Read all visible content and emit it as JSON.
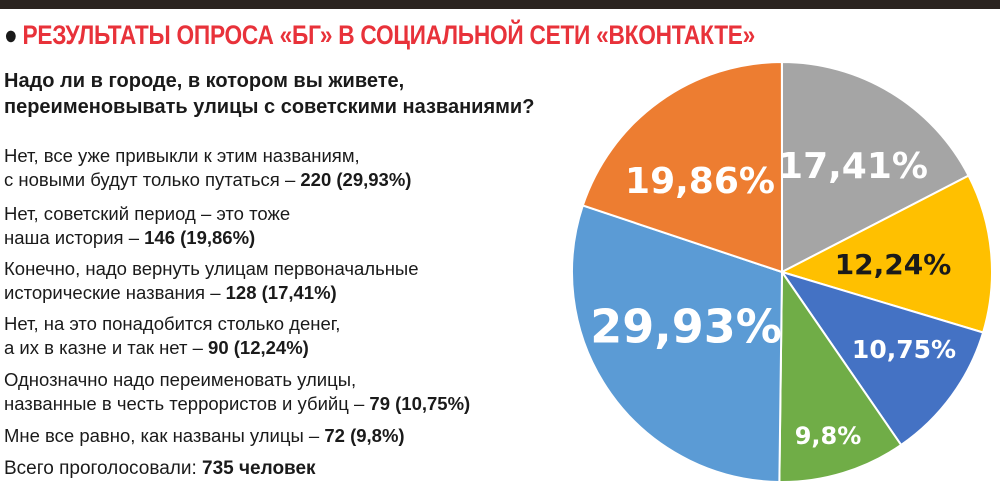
{
  "header": {
    "title": "РЕЗУЛЬТАТЫ ОПРОСА «БГ» В СОЦИАЛЬНОЙ СЕТИ «ВКОНТАКТЕ»"
  },
  "question": [
    "Надо ли в городе, в котором вы живете,",
    "переименовывать улицы с советскими названиями?"
  ],
  "answers": [
    {
      "lines": [
        "Нет, все уже привыкли к этим названиям,",
        "с новыми будут только путаться – "
      ],
      "value": "220 (29,93%)"
    },
    {
      "lines": [
        "Нет, советский период – это тоже",
        "наша история – "
      ],
      "value": "146 (19,86%)"
    },
    {
      "lines": [
        "Конечно, надо вернуть улицам первоначальные",
        "исторические названия – "
      ],
      "value": "128 (17,41%)"
    },
    {
      "lines": [
        "Нет, на это понадобится столько денег,",
        "а их в казне и так нет – "
      ],
      "value": "90 (12,24%)"
    },
    {
      "lines": [
        "Однозначно надо переименовать улицы,",
        "названные в честь террористов и убийц – "
      ],
      "value": "79 (10,75%)"
    },
    {
      "lines": [
        "",
        "Мне все равно, как названы улицы – "
      ],
      "value": "72 (9,8%)"
    }
  ],
  "total": {
    "label": "Всего проголосовали: ",
    "value": "735 человек"
  },
  "chart_data": {
    "type": "pie",
    "start": "12 o'clock, clockwise",
    "slices": [
      {
        "label": "17,41%",
        "value": 17.41,
        "votes": 128,
        "color": "#a5a5a5",
        "label_color": "#ffffff"
      },
      {
        "label": "12,24%",
        "value": 12.24,
        "votes": 90,
        "color": "#ffc000",
        "label_color": "#1a1a1a"
      },
      {
        "label": "10,75%",
        "value": 10.75,
        "votes": 79,
        "color": "#4472c4",
        "label_color": "#ffffff"
      },
      {
        "label": "9,8%",
        "value": 9.8,
        "votes": 72,
        "color": "#70ad47",
        "label_color": "#ffffff"
      },
      {
        "label": "29,93%",
        "value": 29.93,
        "votes": 220,
        "color": "#5b9bd5",
        "label_color": "#ffffff"
      },
      {
        "label": "19,86%",
        "value": 19.86,
        "votes": 146,
        "color": "#ed7d31",
        "label_color": "#ffffff"
      }
    ]
  }
}
